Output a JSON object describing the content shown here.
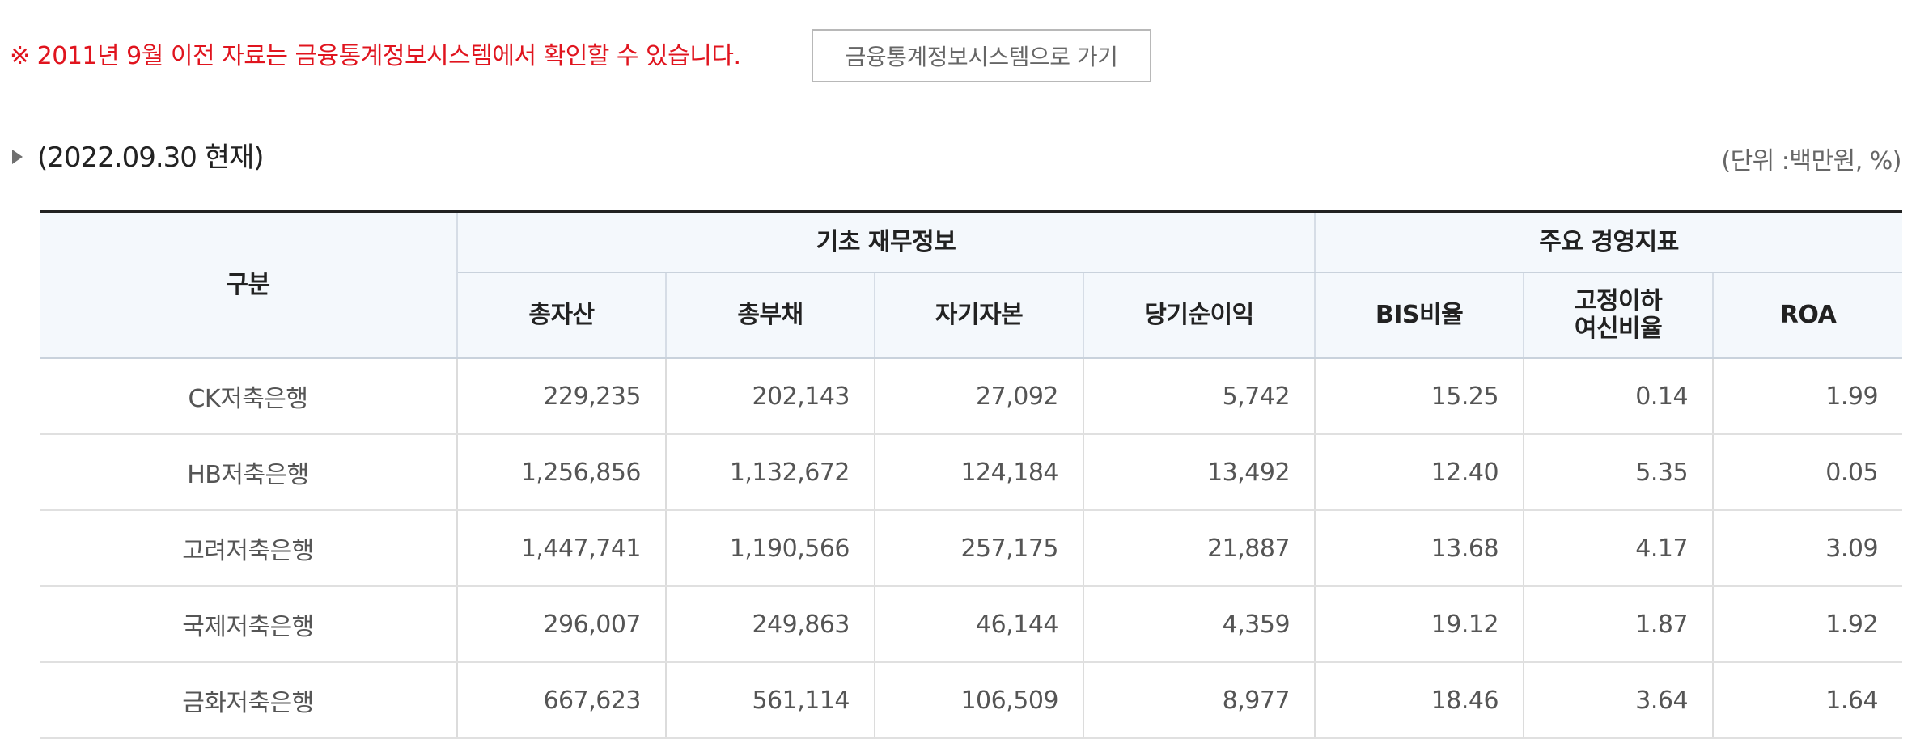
{
  "notice": {
    "text": "※ 2011년 9월 이전 자료는 금융통계정보시스템에서 확인할 수 있습니다.",
    "button_label": "금융통계정보시스템으로 가기"
  },
  "section": {
    "date_label": "(2022.09.30 현재)",
    "unit_label": "(단위 :백만원, %)"
  },
  "table": {
    "header_group": "구분",
    "group_basic": "기초 재무정보",
    "group_indicators": "주요 경영지표",
    "columns": {
      "total_assets": "총자산",
      "total_liabilities": "총부채",
      "equity": "자기자본",
      "net_income": "당기순이익",
      "bis_ratio": "BIS비율",
      "npl_ratio_line1": "고정이하",
      "npl_ratio_line2": "여신비율",
      "roa": "ROA"
    },
    "rows": [
      {
        "name": "CK저축은행",
        "total_assets": "229,235",
        "total_liabilities": "202,143",
        "equity": "27,092",
        "net_income": "5,742",
        "bis_ratio": "15.25",
        "npl_ratio": "0.14",
        "roa": "1.99"
      },
      {
        "name": "HB저축은행",
        "total_assets": "1,256,856",
        "total_liabilities": "1,132,672",
        "equity": "124,184",
        "net_income": "13,492",
        "bis_ratio": "12.40",
        "npl_ratio": "5.35",
        "roa": "0.05"
      },
      {
        "name": "고려저축은행",
        "total_assets": "1,447,741",
        "total_liabilities": "1,190,566",
        "equity": "257,175",
        "net_income": "21,887",
        "bis_ratio": "13.68",
        "npl_ratio": "4.17",
        "roa": "3.09"
      },
      {
        "name": "국제저축은행",
        "total_assets": "296,007",
        "total_liabilities": "249,863",
        "equity": "46,144",
        "net_income": "4,359",
        "bis_ratio": "19.12",
        "npl_ratio": "1.87",
        "roa": "1.92"
      },
      {
        "name": "금화저축은행",
        "total_assets": "667,623",
        "total_liabilities": "561,114",
        "equity": "106,509",
        "net_income": "8,977",
        "bis_ratio": "18.46",
        "npl_ratio": "3.64",
        "roa": "1.64"
      }
    ]
  },
  "colors": {
    "notice_red": "#e0141e",
    "header_bg": "#f4f8fc",
    "table_top_border": "#222222"
  }
}
